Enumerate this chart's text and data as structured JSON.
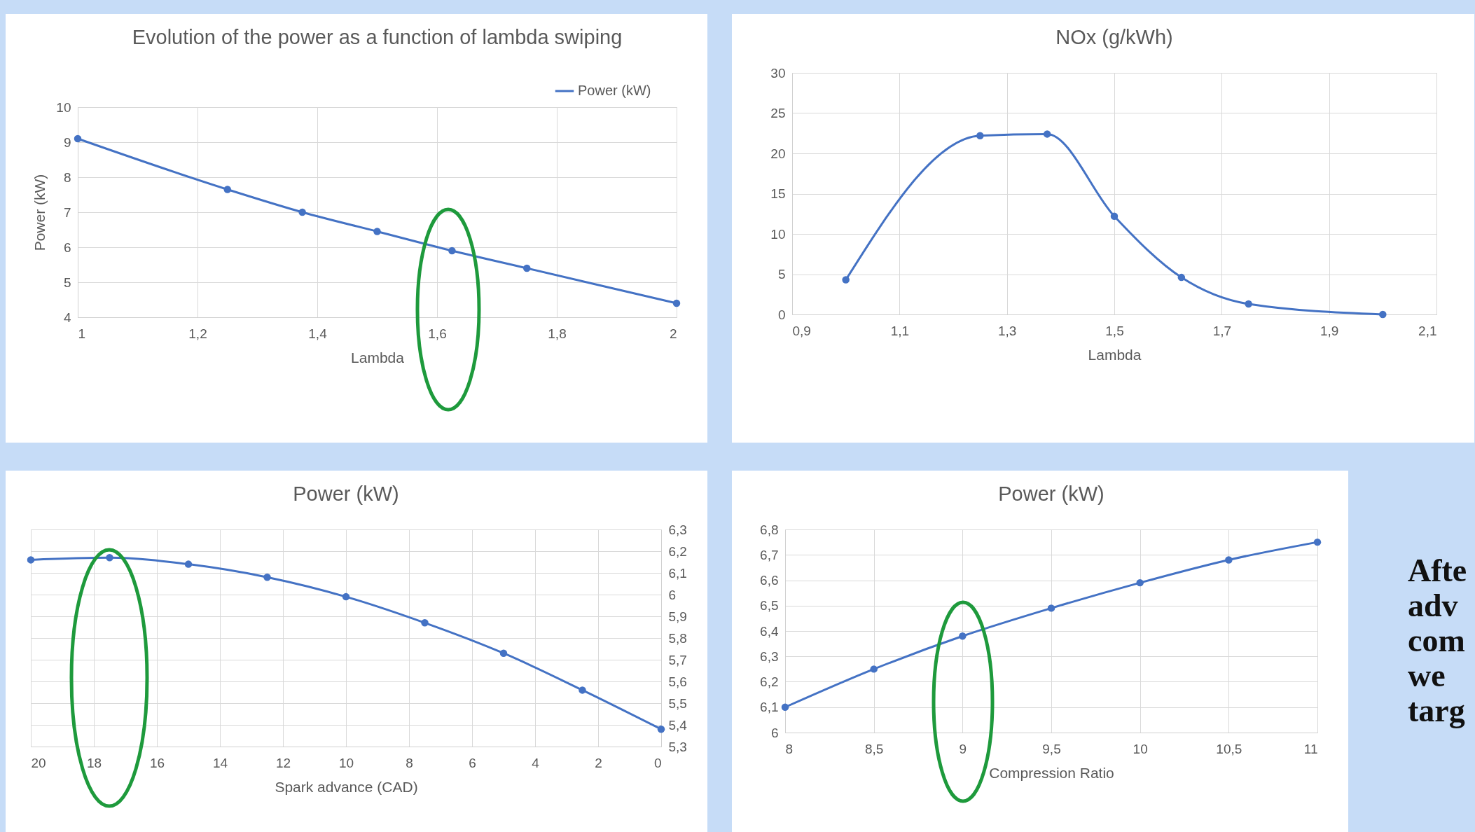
{
  "chart_data": [
    {
      "type": "line",
      "title": "Evolution of the power as a function of lambda swiping",
      "xlabel": "Lambda",
      "ylabel": "Power (kW)",
      "x": [
        1,
        1.25,
        1.375,
        1.5,
        1.625,
        1.75,
        2
      ],
      "series": [
        {
          "name": "Power (kW)",
          "color": "#4472c4",
          "values": [
            9.1,
            7.65,
            7.0,
            6.45,
            5.9,
            5.4,
            4.4
          ]
        }
      ],
      "xlim": [
        1,
        2
      ],
      "xticks": [
        1,
        {
          "value": 1.2,
          "label": "1,2"
        },
        {
          "value": 1.4,
          "label": "1,4"
        },
        {
          "value": 1.6,
          "label": "1,6"
        },
        {
          "value": 1.8,
          "label": "1,8"
        },
        2
      ],
      "ylim": [
        4,
        10
      ],
      "yticks": [
        4,
        5,
        6,
        7,
        8,
        9,
        10
      ],
      "grid": true,
      "legend": "top right",
      "marker": "circle",
      "line_style": "solid"
    },
    {
      "type": "line",
      "title": "NOx (g/kWh)",
      "xlabel": "Lambda",
      "x": [
        1,
        1.25,
        1.375,
        1.5,
        1.625,
        1.75,
        2
      ],
      "series": [
        {
          "color": "#4472c4",
          "values": [
            4.3,
            22.2,
            22.4,
            12.2,
            4.6,
            1.3,
            0
          ]
        }
      ],
      "xlim": [
        0.9,
        2.1
      ],
      "xticks": [
        {
          "value": 0.9,
          "label": "0,9"
        },
        {
          "value": 1.1,
          "label": "1,1"
        },
        {
          "value": 1.3,
          "label": "1,3"
        },
        {
          "value": 1.5,
          "label": "1,5"
        },
        {
          "value": 1.7,
          "label": "1,7"
        },
        {
          "value": 1.9,
          "label": "1,9"
        },
        {
          "value": 2.1,
          "label": "2,1"
        }
      ],
      "ylim": [
        0,
        30
      ],
      "yticks": [
        0,
        5,
        10,
        15,
        20,
        25,
        30
      ],
      "grid": true,
      "marker": "circle",
      "line_style": "solid"
    },
    {
      "type": "line",
      "title": "Power (kW)",
      "xlabel": "Spark advance (CAD)",
      "x": [
        20,
        17.5,
        15,
        12.5,
        10,
        7.5,
        5,
        2.5,
        0
      ],
      "series": [
        {
          "color": "#4472c4",
          "axis": "y2",
          "values": [
            6.16,
            6.17,
            6.14,
            6.08,
            5.99,
            5.87,
            5.73,
            5.56,
            5.38
          ]
        }
      ],
      "xlim": [
        20,
        0
      ],
      "xticks": [
        20,
        18,
        16,
        14,
        12,
        10,
        8,
        6,
        4,
        2,
        0
      ],
      "y2lim": [
        5.3,
        6.3
      ],
      "y2ticks": [
        {
          "value": 5.3,
          "label": "5,3"
        },
        {
          "value": 5.4,
          "label": "5,4"
        },
        {
          "value": 5.5,
          "label": "5,5"
        },
        {
          "value": 5.6,
          "label": "5,6"
        },
        {
          "value": 5.7,
          "label": "5,7"
        },
        {
          "value": 5.8,
          "label": "5,8"
        },
        {
          "value": 5.9,
          "label": "5,9"
        },
        6,
        {
          "value": 6.1,
          "label": "6,1"
        },
        {
          "value": 6.2,
          "label": "6,2"
        },
        {
          "value": 6.3,
          "label": "6,3"
        }
      ],
      "grid": true,
      "marker": "circle",
      "line_style": "solid"
    },
    {
      "type": "line",
      "title": "Power (kW)",
      "xlabel": "Compression Ratio",
      "x": [
        8,
        8.5,
        9,
        9.5,
        10,
        10.5,
        11
      ],
      "series": [
        {
          "color": "#4472c4",
          "values": [
            6.1,
            6.25,
            6.38,
            6.49,
            6.59,
            6.68,
            6.75
          ]
        }
      ],
      "xlim": [
        8,
        11
      ],
      "xticks": [
        8,
        {
          "value": 8.5,
          "label": "8,5"
        },
        9,
        {
          "value": 9.5,
          "label": "9,5"
        },
        10,
        {
          "value": 10.5,
          "label": "10,5"
        },
        11
      ],
      "ylim": [
        6,
        6.8
      ],
      "yticks": [
        6,
        {
          "value": 6.1,
          "label": "6,1"
        },
        {
          "value": 6.2,
          "label": "6,2"
        },
        {
          "value": 6.3,
          "label": "6,3"
        },
        {
          "value": 6.4,
          "label": "6,4"
        },
        {
          "value": 6.5,
          "label": "6,5"
        },
        {
          "value": 6.6,
          "label": "6,6"
        },
        {
          "value": 6.7,
          "label": "6,7"
        },
        {
          "value": 6.8,
          "label": "6,8"
        }
      ],
      "grid": true,
      "marker": "circle",
      "line_style": "solid"
    },
    {
      "type": "other",
      "annotations": [
        "Afte",
        "adv",
        "com",
        "we",
        "targ"
      ]
    }
  ]
}
